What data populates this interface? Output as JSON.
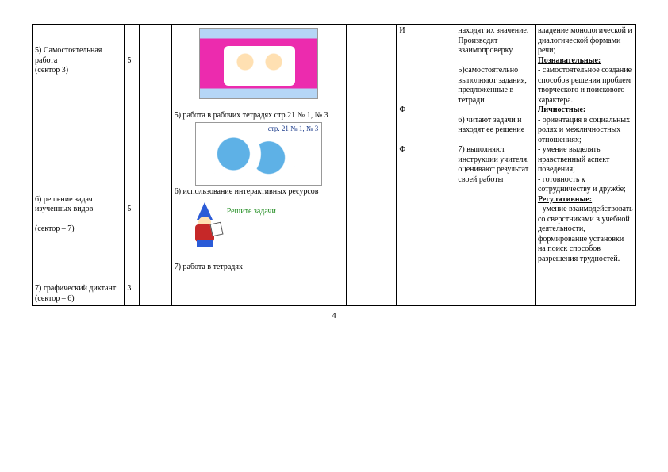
{
  "page_number": "4",
  "col1": {
    "item5": "5) Самостоятельная работа\n(сектор 3)",
    "item6": "6) решение задач изученных видов\n\n(сектор – 7)",
    "item7": "7) графический диктант\n(сектор – 6)"
  },
  "col2": {
    "t5": "5",
    "t6": "5",
    "t7": "3"
  },
  "col4": {
    "line5": "5) работа в рабочих тетрадях стр.21 № 1, № 3",
    "line6": "6) использование интерактивных ресурсов",
    "task_label": "Решите задачи",
    "line7": "7) работа в тетрадях"
  },
  "col6": {
    "m1": "И",
    "m2": "Ф",
    "m3": "Ф"
  },
  "col8": {
    "p1": "находят их значение. Производят взаимопроверку.",
    "p5": "5)самостоятельно выполняют задания, предложенные в тетради",
    "p6": "6) читают задачи и находят ее решение",
    "p7": "7) выполняют инструкции учителя, оценивают результат своей работы"
  },
  "col9": {
    "p1": "владение монологической и диалогической формами речи;",
    "h_poz": "Познавательные:",
    "p2": "- самостоятельное создание способов решения проблем творческого и поискового характера.",
    "h_lich": "Личностные:",
    "p3": "- ориентация в социальных ролях и межличностных отношениях;",
    "p4": "- умение выделять нравственный аспект поведения;",
    "p5": "- готовность к сотрудничеству и дружбе;",
    "h_reg": "Регулятивные:",
    "p6": "- умение взаимодействовать со сверстниками в учебной деятельности, формирование установки на поиск способов разрешения трудностей."
  }
}
